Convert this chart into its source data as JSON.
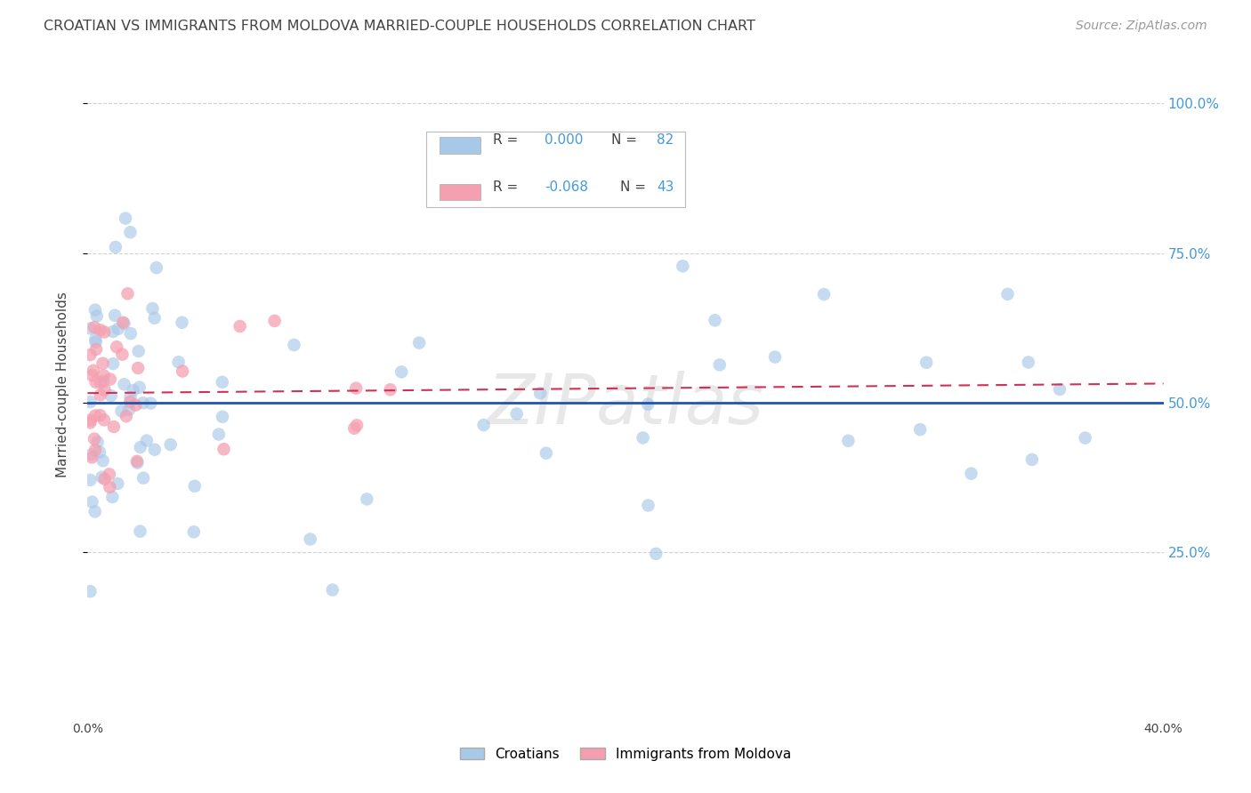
{
  "title": "CROATIAN VS IMMIGRANTS FROM MOLDOVA MARRIED-COUPLE HOUSEHOLDS CORRELATION CHART",
  "source": "Source: ZipAtlas.com",
  "ylabel": "Married-couple Households",
  "xlim": [
    0.0,
    0.4
  ],
  "ylim": [
    -0.02,
    1.08
  ],
  "blue_color": "#a8c8e8",
  "pink_color": "#f4a0b0",
  "blue_line_color": "#2255aa",
  "pink_line_color": "#cc3355",
  "background_color": "#ffffff",
  "grid_color": "#cccccc",
  "title_color": "#444444",
  "right_tick_color": "#4499dd",
  "watermark": "ZIPatlas",
  "ytick_positions": [
    0.25,
    0.5,
    0.75,
    1.0
  ],
  "ytick_labels": [
    "25.0%",
    "50.0%",
    "75.0%",
    "100.0%"
  ],
  "xtick_positions": [
    0.0,
    0.08,
    0.16,
    0.24,
    0.32,
    0.4
  ],
  "xtick_labels": [
    "0.0%",
    "",
    "",
    "",
    "",
    "40.0%"
  ],
  "legend_r1_label": "R = ",
  "legend_r1_val": "0.000",
  "legend_r1_n_label": "N = ",
  "legend_r1_n_val": "82",
  "legend_r2_label": "R = ",
  "legend_r2_val": "-0.068",
  "legend_r2_n_label": "N = ",
  "legend_r2_n_val": "43",
  "seed": 12345,
  "n_croatians": 82,
  "n_moldova": 43
}
